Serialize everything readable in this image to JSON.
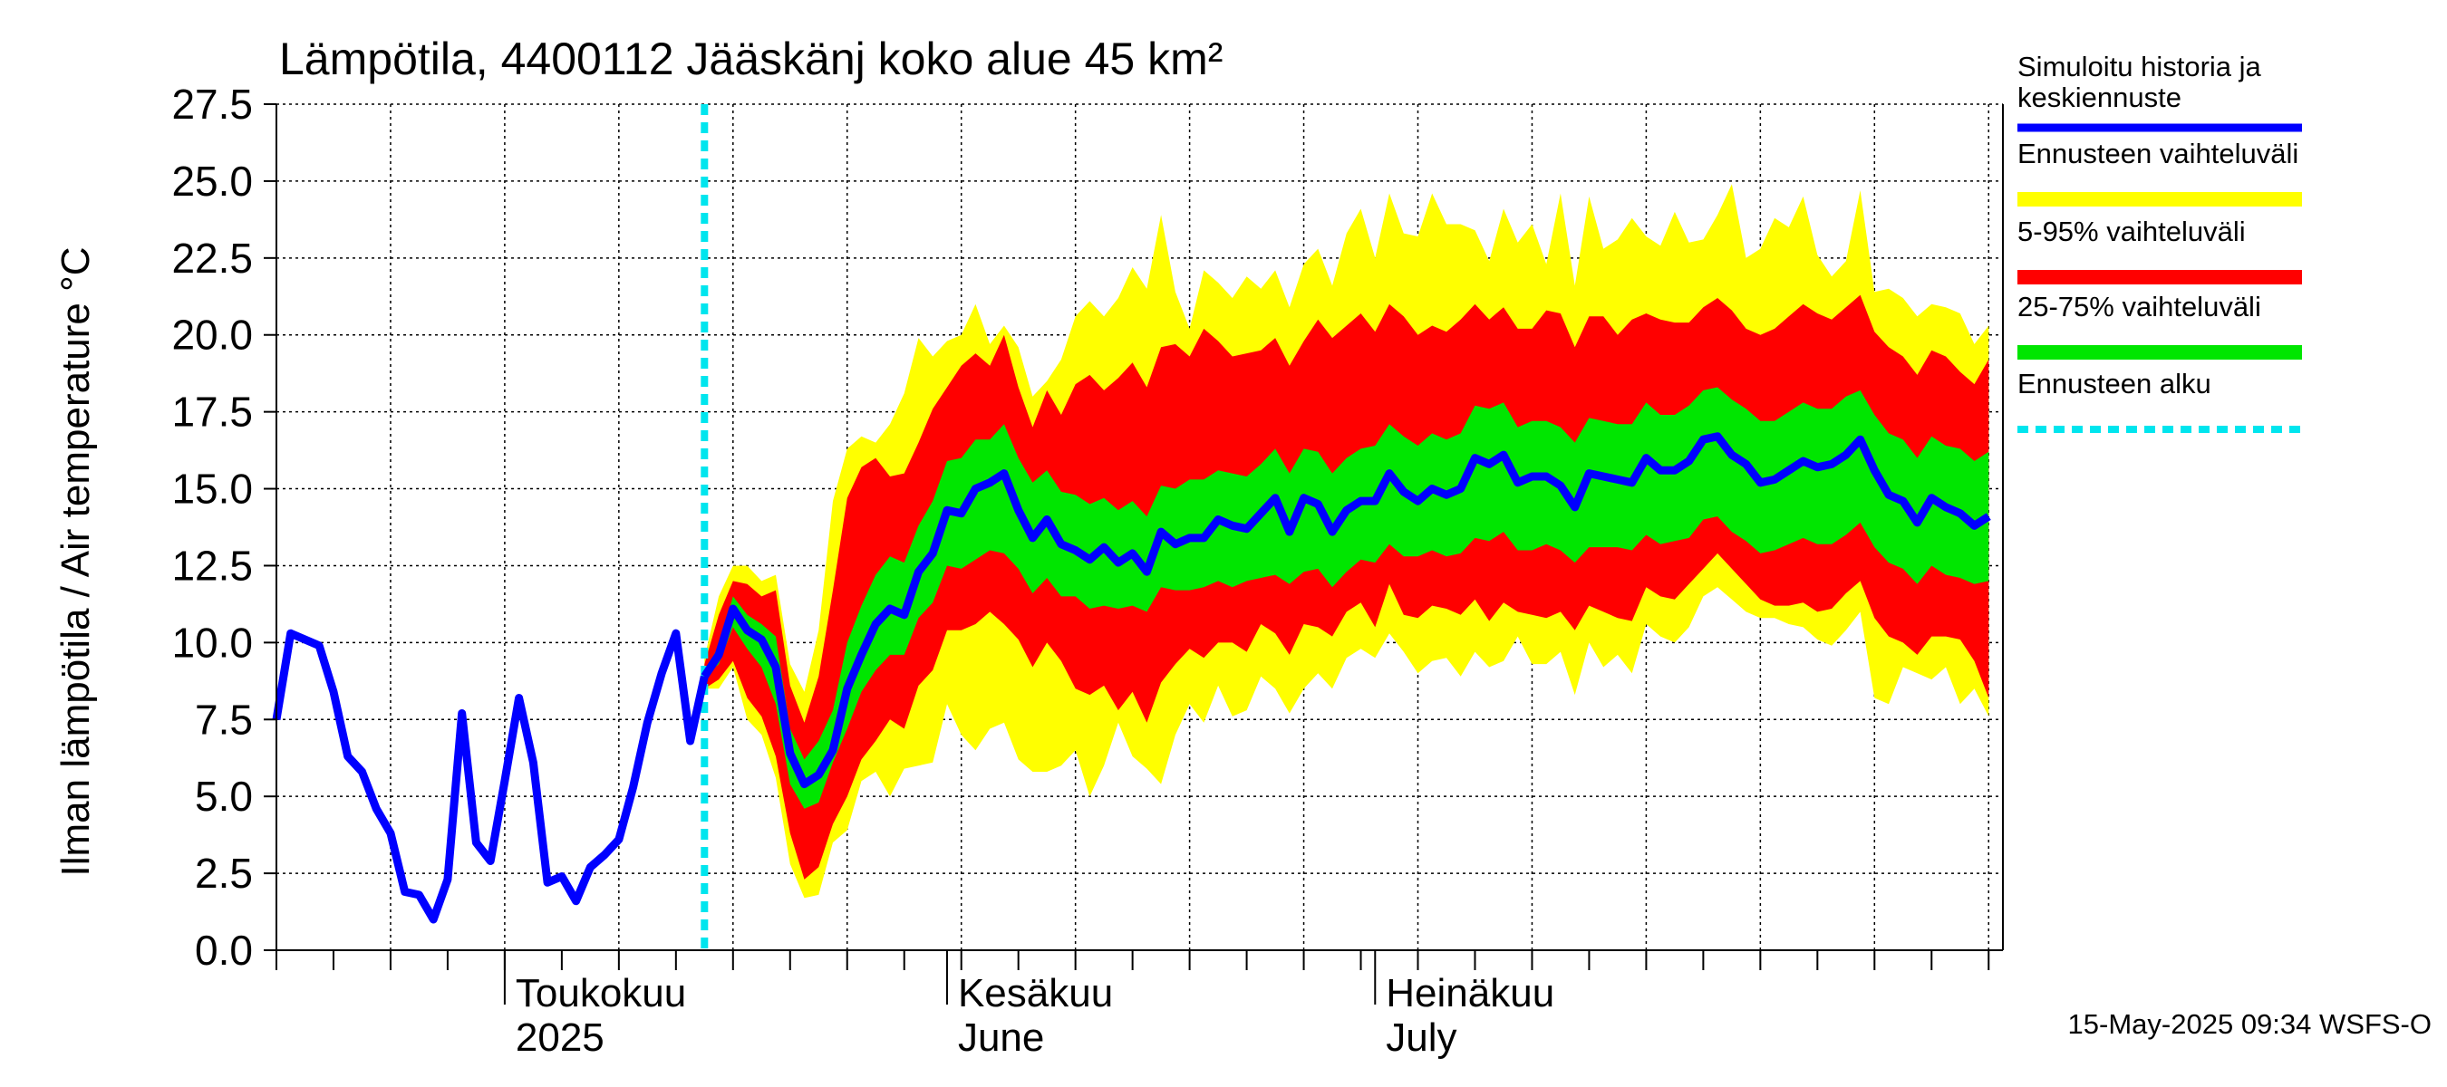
{
  "chart_data": {
    "type": "area",
    "title": "Lämpötila, 4400112 Jääskänj koko alue 45 km²",
    "ylabel": "Ilman lämpötila / Air temperature   °C",
    "ylim": [
      0,
      27.5
    ],
    "y_ticks": [
      "0.0",
      "2.5",
      "5.0",
      "7.5",
      "10.0",
      "12.5",
      "15.0",
      "17.5",
      "20.0",
      "22.5",
      "25.0",
      "27.5"
    ],
    "x_domain": [
      "2025-04-15",
      "2025-08-14"
    ],
    "x_labels": [
      {
        "date": "2025-05-01",
        "line1": "Toukokuu",
        "line2": "2025"
      },
      {
        "date": "2025-06-01",
        "line1": "Kesäkuu",
        "line2": "June"
      },
      {
        "date": "2025-07-01",
        "line1": "Heinäkuu",
        "line2": "July"
      }
    ],
    "grid": true,
    "forecast_start": "2025-05-15",
    "footer": "15-May-2025 09:34 WSFS-O",
    "legend": {
      "placement": "right",
      "items": [
        {
          "label": "Simuloitu historia ja keskiennuste",
          "color": "#0000ff",
          "style": "line"
        },
        {
          "label": "Ennusteen vaihteluväli",
          "color": "#ffff00",
          "style": "band"
        },
        {
          "label": "5-95% vaihteluväli",
          "color": "#ff0000",
          "style": "band"
        },
        {
          "label": "25-75% vaihteluväli",
          "color": "#00e600",
          "style": "band"
        },
        {
          "label": "Ennusteen alku",
          "color": "#00e5ee",
          "style": "dashed"
        }
      ]
    },
    "history": {
      "dates": [
        "2025-04-15",
        "2025-04-16",
        "2025-04-17",
        "2025-04-18",
        "2025-04-19",
        "2025-04-20",
        "2025-04-21",
        "2025-04-22",
        "2025-04-23",
        "2025-04-24",
        "2025-04-25",
        "2025-04-26",
        "2025-04-27",
        "2025-04-28",
        "2025-04-29",
        "2025-04-30",
        "2025-05-01",
        "2025-05-02",
        "2025-05-03",
        "2025-05-04",
        "2025-05-05",
        "2025-05-06",
        "2025-05-07",
        "2025-05-08",
        "2025-05-09",
        "2025-05-10",
        "2025-05-11",
        "2025-05-12",
        "2025-05-13",
        "2025-05-14",
        "2025-05-15"
      ],
      "values": [
        7.5,
        10.3,
        10.1,
        9.9,
        8.4,
        6.3,
        5.8,
        4.6,
        3.8,
        1.9,
        1.8,
        1.0,
        2.3,
        7.7,
        3.5,
        2.9,
        5.5,
        8.2,
        6.1,
        2.2,
        2.4,
        1.6,
        2.7,
        3.1,
        3.6,
        5.3,
        7.4,
        9.0,
        10.3,
        6.8,
        8.9
      ]
    },
    "forecast": {
      "start": "2025-05-15",
      "mean": [
        8.9,
        9.6,
        11.1,
        10.4,
        10.1,
        9.2,
        6.4,
        5.4,
        5.7,
        6.5,
        8.5,
        9.6,
        10.6,
        11.1,
        10.9,
        12.3,
        12.9,
        14.3,
        14.2,
        15.0,
        15.2,
        15.5,
        14.3,
        13.4,
        14.0,
        13.2,
        13.0,
        12.7,
        13.1,
        12.6,
        12.9,
        12.3,
        13.6,
        13.2,
        13.4,
        13.4,
        14.0,
        13.8,
        13.7,
        14.2,
        14.7,
        13.6,
        14.7,
        14.5,
        13.6,
        14.3,
        14.6,
        14.6,
        15.5,
        14.9,
        14.6,
        15.0,
        14.8,
        15.0,
        16.0,
        15.8,
        16.1,
        15.2,
        15.4,
        15.4,
        15.1,
        14.4,
        15.5,
        15.4,
        15.3,
        15.2,
        16.0,
        15.6,
        15.6,
        15.9,
        16.6,
        16.7,
        16.1,
        15.8,
        15.2,
        15.3,
        15.6,
        15.9,
        15.7,
        15.8,
        16.1,
        16.6,
        15.6,
        14.8,
        14.6,
        13.9,
        14.7,
        14.4,
        14.2,
        13.8,
        14.1
      ],
      "p25": [
        8.9,
        9.3,
        10.5,
        9.8,
        9.2,
        8.0,
        5.4,
        4.6,
        4.8,
        6.1,
        7.2,
        8.4,
        9.1,
        9.6,
        9.6,
        10.8,
        11.3,
        12.5,
        12.4,
        12.7,
        13.0,
        12.9,
        12.4,
        11.6,
        12.1,
        11.5,
        11.5,
        11.1,
        11.2,
        11.1,
        11.2,
        11.0,
        11.8,
        11.7,
        11.7,
        11.8,
        12.0,
        11.8,
        12.0,
        12.1,
        12.2,
        11.9,
        12.3,
        12.4,
        11.8,
        12.3,
        12.7,
        12.6,
        13.2,
        12.8,
        12.8,
        13.0,
        12.8,
        12.9,
        13.4,
        13.3,
        13.6,
        13.0,
        13.0,
        13.2,
        13.0,
        12.6,
        13.1,
        13.1,
        13.1,
        13.0,
        13.5,
        13.2,
        13.3,
        13.4,
        14.0,
        14.1,
        13.6,
        13.3,
        12.9,
        13.0,
        13.2,
        13.4,
        13.2,
        13.2,
        13.5,
        13.9,
        13.1,
        12.6,
        12.4,
        11.9,
        12.5,
        12.2,
        12.1,
        11.9,
        12.0
      ],
      "p75": [
        9.0,
        9.9,
        11.5,
        10.9,
        10.6,
        10.2,
        7.2,
        6.2,
        6.8,
        7.8,
        10.0,
        11.2,
        12.2,
        12.8,
        12.6,
        13.8,
        14.6,
        15.9,
        16.0,
        16.6,
        16.6,
        17.1,
        16.0,
        15.2,
        15.6,
        14.9,
        14.8,
        14.5,
        14.7,
        14.3,
        14.6,
        14.1,
        15.1,
        15.0,
        15.3,
        15.3,
        15.6,
        15.5,
        15.4,
        15.8,
        16.3,
        15.5,
        16.3,
        16.2,
        15.5,
        16.0,
        16.3,
        16.4,
        17.1,
        16.7,
        16.4,
        16.8,
        16.6,
        16.8,
        17.7,
        17.6,
        17.8,
        17.0,
        17.2,
        17.2,
        17.0,
        16.5,
        17.3,
        17.2,
        17.1,
        17.1,
        17.8,
        17.4,
        17.4,
        17.7,
        18.2,
        18.3,
        17.9,
        17.6,
        17.2,
        17.2,
        17.5,
        17.8,
        17.6,
        17.6,
        18.0,
        18.2,
        17.4,
        16.8,
        16.6,
        16.0,
        16.7,
        16.4,
        16.3,
        15.9,
        16.2
      ],
      "p05": [
        8.5,
        8.8,
        9.4,
        8.2,
        7.6,
        6.3,
        3.8,
        2.3,
        2.7,
        4.1,
        5.0,
        6.2,
        6.8,
        7.5,
        7.2,
        8.6,
        9.1,
        10.4,
        10.4,
        10.6,
        11.0,
        10.6,
        10.1,
        9.2,
        10.0,
        9.4,
        8.5,
        8.3,
        8.6,
        7.8,
        8.4,
        7.4,
        8.7,
        9.3,
        9.8,
        9.5,
        10.0,
        10.0,
        9.7,
        10.6,
        10.3,
        9.6,
        10.6,
        10.5,
        10.2,
        11.0,
        11.3,
        10.5,
        11.9,
        10.9,
        10.8,
        11.2,
        11.1,
        10.9,
        11.4,
        10.7,
        11.3,
        11.0,
        10.9,
        10.8,
        11.0,
        10.4,
        11.2,
        11.0,
        10.8,
        10.7,
        11.8,
        11.5,
        11.4,
        11.9,
        12.4,
        12.9,
        12.4,
        11.9,
        11.4,
        11.2,
        11.2,
        11.3,
        11.0,
        11.1,
        11.6,
        12.0,
        10.8,
        10.2,
        10.0,
        9.6,
        10.2,
        10.2,
        10.1,
        9.4,
        8.2
      ],
      "p95": [
        9.3,
        10.9,
        12.0,
        11.9,
        11.5,
        11.7,
        8.6,
        7.4,
        8.9,
        11.7,
        14.7,
        15.7,
        16.0,
        15.4,
        15.5,
        16.5,
        17.6,
        18.3,
        19.0,
        19.4,
        19.0,
        20.0,
        18.3,
        17.0,
        18.2,
        17.4,
        18.4,
        18.7,
        18.2,
        18.6,
        19.1,
        18.3,
        19.6,
        19.7,
        19.3,
        20.2,
        19.8,
        19.3,
        19.4,
        19.5,
        19.9,
        19.0,
        19.8,
        20.5,
        19.9,
        20.3,
        20.7,
        20.1,
        21.0,
        20.6,
        20.0,
        20.3,
        20.1,
        20.5,
        21.0,
        20.5,
        20.9,
        20.2,
        20.2,
        20.8,
        20.7,
        19.6,
        20.6,
        20.6,
        20.0,
        20.5,
        20.7,
        20.5,
        20.4,
        20.4,
        20.9,
        21.2,
        20.8,
        20.2,
        20.0,
        20.2,
        20.6,
        21.0,
        20.7,
        20.5,
        20.9,
        21.3,
        20.1,
        19.6,
        19.3,
        18.7,
        19.5,
        19.3,
        18.8,
        18.4,
        19.2
      ],
      "min": [
        8.5,
        8.5,
        9.2,
        7.5,
        7.0,
        5.6,
        2.8,
        1.7,
        1.8,
        3.5,
        3.9,
        5.5,
        5.8,
        5.0,
        5.9,
        6.0,
        6.1,
        8.0,
        7.0,
        6.5,
        7.2,
        7.4,
        6.2,
        5.8,
        5.8,
        6.0,
        6.5,
        5.0,
        6.0,
        7.4,
        6.3,
        5.9,
        5.4,
        7.0,
        8.0,
        7.4,
        8.6,
        7.6,
        7.8,
        8.9,
        8.5,
        7.7,
        8.5,
        9.0,
        8.5,
        9.5,
        9.8,
        9.5,
        10.3,
        9.7,
        9.0,
        9.4,
        9.5,
        8.9,
        9.7,
        9.2,
        9.4,
        10.2,
        9.3,
        9.3,
        9.7,
        8.3,
        10.0,
        9.2,
        9.6,
        9.0,
        10.6,
        10.2,
        10.0,
        10.5,
        11.5,
        11.8,
        11.4,
        11.0,
        10.8,
        10.8,
        10.6,
        10.5,
        10.1,
        9.9,
        10.4,
        11.0,
        8.2,
        8.0,
        9.2,
        9.0,
        8.8,
        9.2,
        8.0,
        8.5,
        7.6
      ],
      "max": [
        9.5,
        11.5,
        12.5,
        12.5,
        12.0,
        12.2,
        9.3,
        8.4,
        10.4,
        14.6,
        16.3,
        16.7,
        16.5,
        17.1,
        18.1,
        19.9,
        19.3,
        19.8,
        20.0,
        21.0,
        19.7,
        20.3,
        19.6,
        18.0,
        18.5,
        19.2,
        20.6,
        21.1,
        20.6,
        21.2,
        22.2,
        21.5,
        23.9,
        21.4,
        20.2,
        22.1,
        21.7,
        21.2,
        21.9,
        21.5,
        22.1,
        20.9,
        22.3,
        22.8,
        21.6,
        23.3,
        24.1,
        22.5,
        24.6,
        23.3,
        23.2,
        24.6,
        23.6,
        23.6,
        23.4,
        22.4,
        24.1,
        23.0,
        23.6,
        22.3,
        24.6,
        21.6,
        24.5,
        22.8,
        23.1,
        23.8,
        23.2,
        22.9,
        24.0,
        23.0,
        23.1,
        23.9,
        24.9,
        22.5,
        22.8,
        23.8,
        23.5,
        24.5,
        22.6,
        21.9,
        22.4,
        24.7,
        21.4,
        21.5,
        21.2,
        20.6,
        21.0,
        20.9,
        20.7,
        19.7,
        20.3
      ]
    }
  }
}
